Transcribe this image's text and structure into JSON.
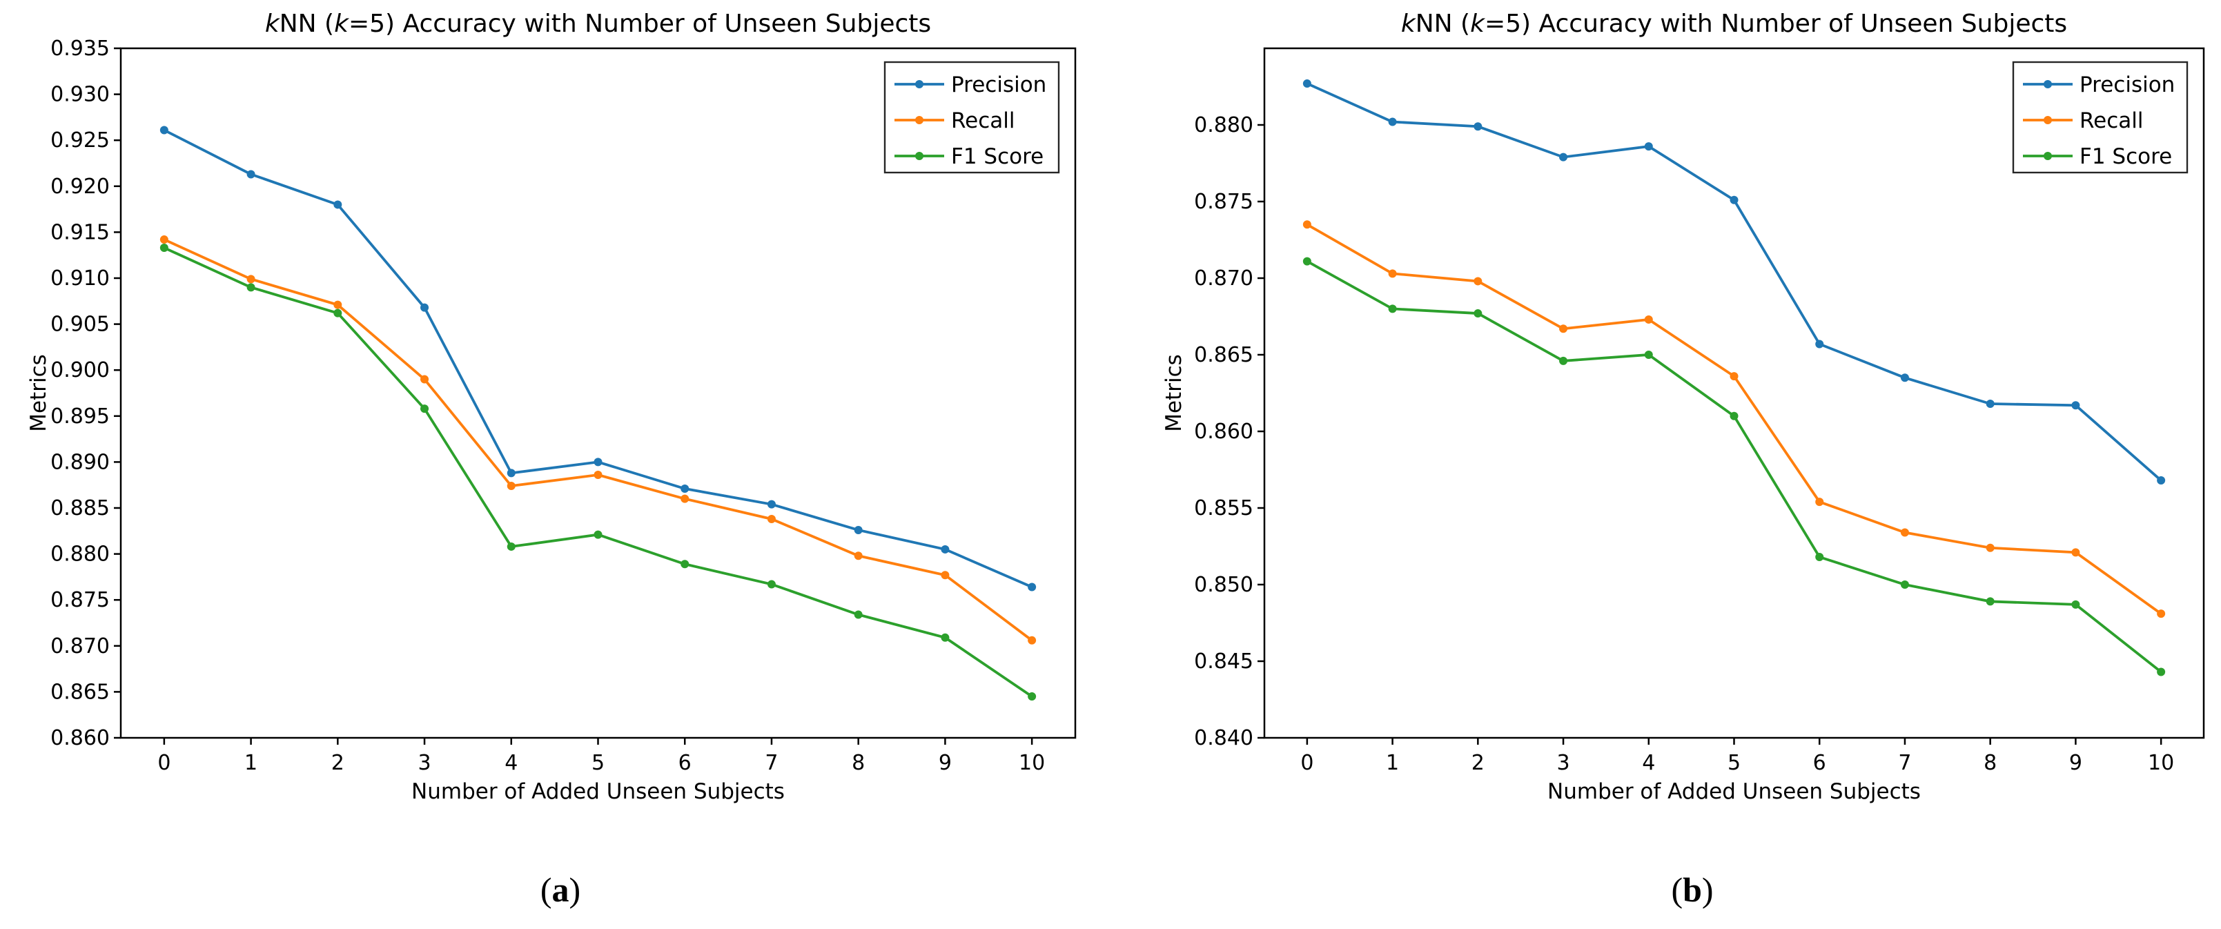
{
  "figure": {
    "background": "#ffffff",
    "spine_color": "#000000",
    "legend_border_color": "#262626"
  },
  "chart_data": [
    {
      "id": "a",
      "type": "line",
      "title": "kNN (k=5) Accuracy with Number of Unseen Subjects",
      "title_parts": [
        {
          "text": "k",
          "italic": true
        },
        {
          "text": "NN (",
          "italic": false
        },
        {
          "text": "k",
          "italic": true
        },
        {
          "text": "=5) Accuracy with Number of Unseen Subjects",
          "italic": false
        }
      ],
      "xlabel": "Number of Added Unseen Subjects",
      "ylabel": "Metrics",
      "grid": false,
      "legend_position": "upper right",
      "x": [
        0,
        1,
        2,
        3,
        4,
        5,
        6,
        7,
        8,
        9,
        10
      ],
      "xticks": [
        "0",
        "1",
        "2",
        "3",
        "4",
        "5",
        "6",
        "7",
        "8",
        "9",
        "10"
      ],
      "yticks": [
        "0.860",
        "0.865",
        "0.870",
        "0.875",
        "0.880",
        "0.885",
        "0.890",
        "0.895",
        "0.900",
        "0.905",
        "0.910",
        "0.915",
        "0.920",
        "0.925",
        "0.930",
        "0.935"
      ],
      "xlim": [
        -0.5,
        10.5
      ],
      "ylim": [
        0.86,
        0.935
      ],
      "series": [
        {
          "name": "Precision",
          "color": "#1f77b4",
          "values": [
            0.9261,
            0.9213,
            0.918,
            0.9068,
            0.8888,
            0.89,
            0.8871,
            0.8854,
            0.8826,
            0.8805,
            0.8764
          ]
        },
        {
          "name": "Recall",
          "color": "#ff7f0e",
          "values": [
            0.9142,
            0.9099,
            0.9071,
            0.899,
            0.8874,
            0.8886,
            0.886,
            0.8838,
            0.8798,
            0.8777,
            0.8706
          ]
        },
        {
          "name": "F1 Score",
          "color": "#2ca02c",
          "values": [
            0.9133,
            0.909,
            0.9062,
            0.8958,
            0.8808,
            0.8821,
            0.8789,
            0.8767,
            0.8734,
            0.8709,
            0.8645
          ]
        }
      ],
      "caption": {
        "pre": "(",
        "letter": "a",
        "post": ")"
      }
    },
    {
      "id": "b",
      "type": "line",
      "title": "kNN (k=5) Accuracy with Number of Unseen Subjects",
      "title_parts": [
        {
          "text": "k",
          "italic": true
        },
        {
          "text": "NN (",
          "italic": false
        },
        {
          "text": "k",
          "italic": true
        },
        {
          "text": "=5) Accuracy with Number of Unseen Subjects",
          "italic": false
        }
      ],
      "xlabel": "Number of Added Unseen Subjects",
      "ylabel": "Metrics",
      "grid": false,
      "legend_position": "upper right",
      "x": [
        0,
        1,
        2,
        3,
        4,
        5,
        6,
        7,
        8,
        9,
        10
      ],
      "xticks": [
        "0",
        "1",
        "2",
        "3",
        "4",
        "5",
        "6",
        "7",
        "8",
        "9",
        "10"
      ],
      "yticks": [
        "0.840",
        "0.845",
        "0.850",
        "0.855",
        "0.860",
        "0.865",
        "0.870",
        "0.875",
        "0.880"
      ],
      "xlim": [
        -0.5,
        10.5
      ],
      "ylim": [
        0.84,
        0.885
      ],
      "series": [
        {
          "name": "Precision",
          "color": "#1f77b4",
          "values": [
            0.8827,
            0.8802,
            0.8799,
            0.8779,
            0.8786,
            0.8751,
            0.8657,
            0.8635,
            0.8618,
            0.8617,
            0.8568
          ]
        },
        {
          "name": "Recall",
          "color": "#ff7f0e",
          "values": [
            0.8735,
            0.8703,
            0.8698,
            0.8667,
            0.8673,
            0.8636,
            0.8554,
            0.8534,
            0.8524,
            0.8521,
            0.8481
          ]
        },
        {
          "name": "F1 Score",
          "color": "#2ca02c",
          "values": [
            0.8711,
            0.868,
            0.8677,
            0.8646,
            0.865,
            0.861,
            0.8518,
            0.85,
            0.8489,
            0.8487,
            0.8443
          ]
        }
      ],
      "caption": {
        "pre": "(",
        "letter": "b",
        "post": ")"
      }
    }
  ]
}
